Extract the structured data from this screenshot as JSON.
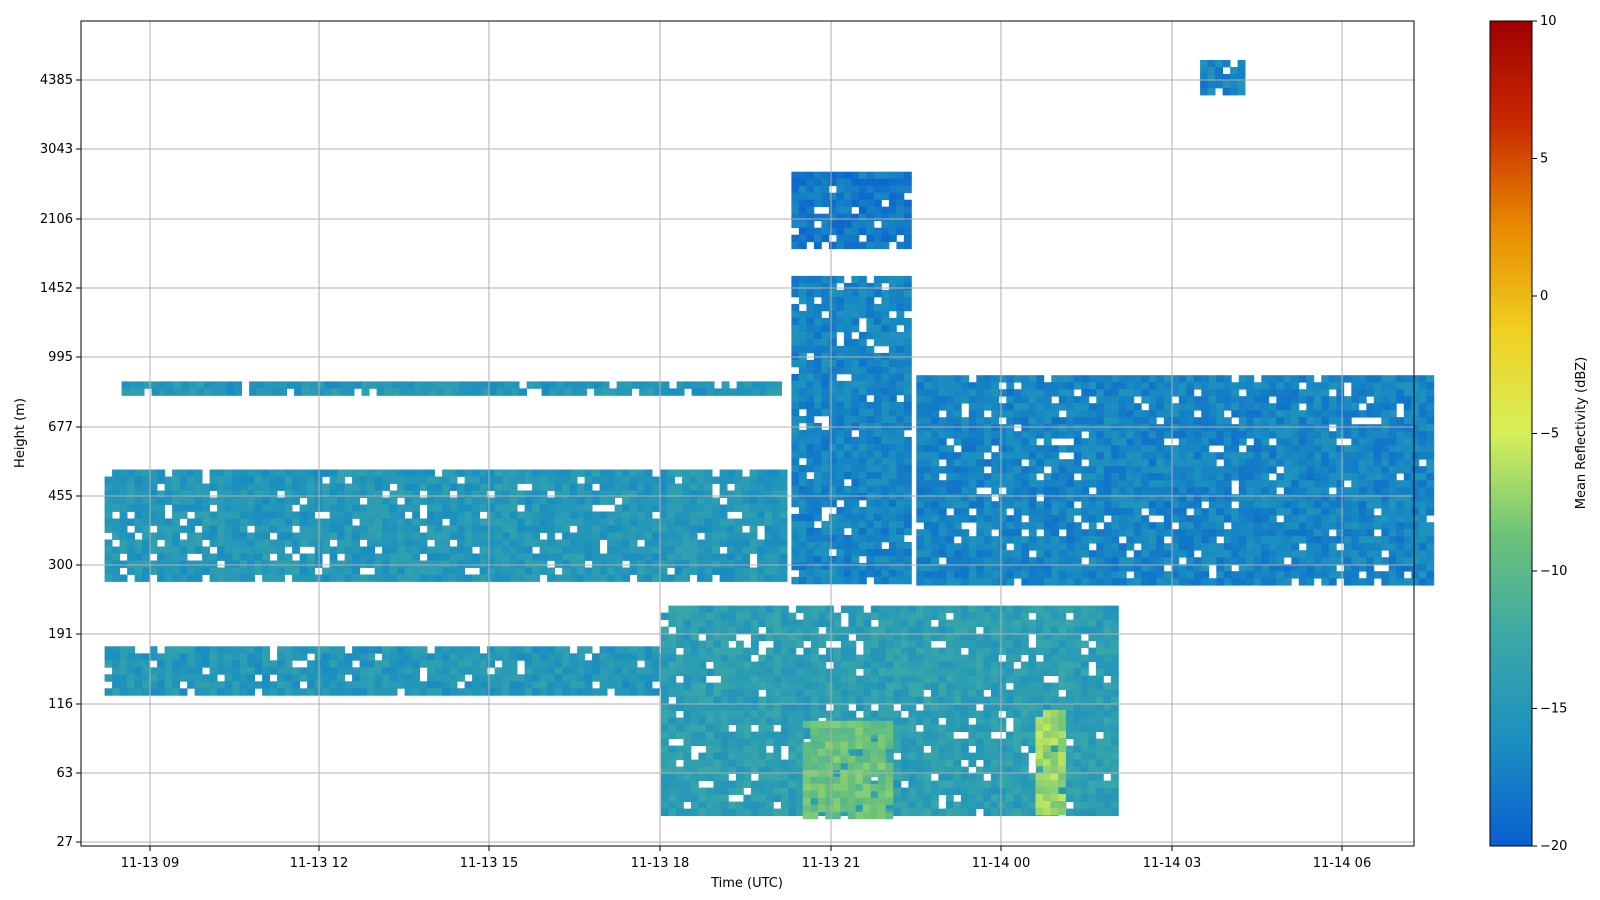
{
  "chart_data": {
    "type": "heatmap",
    "title": "",
    "xlabel": "Time (UTC)",
    "ylabel": "Height (m)",
    "x_ticks": [
      "11-13 09",
      "11-13 12",
      "11-13 15",
      "11-13 18",
      "11-13 21",
      "11-14 00",
      "11-14 03",
      "11-14 06"
    ],
    "y_ticks": [
      "27",
      "63",
      "116",
      "191",
      "300",
      "455",
      "677",
      "995",
      "1452",
      "2106",
      "3043",
      "4385"
    ],
    "colorbar": {
      "label": "Mean Reflectivity (dBZ)",
      "ticks": [
        "10",
        "5",
        "0",
        "−5",
        "−10",
        "−15",
        "−20"
      ],
      "range": [
        -20,
        10
      ],
      "colormap": [
        "#0a5fd0",
        "#1a8fc0",
        "#3aa8a8",
        "#6cc27a",
        "#d6f05a",
        "#f0d020",
        "#e88a00",
        "#c82a00",
        "#a00000"
      ]
    },
    "grid": true,
    "regions": [
      {
        "name": "low cloud layer 300-500 m",
        "t": [
          8.2,
          20.2
        ],
        "h_m": [
          270,
          530
        ],
        "dbz": -15
      },
      {
        "name": "low cloud layer 125-175 m",
        "t": [
          8.2,
          18.0
        ],
        "h_m": [
          125,
          175
        ],
        "dbz": -15
      },
      {
        "name": "thin layer ~850 m",
        "t": [
          8.5,
          20.0
        ],
        "h_m": [
          830,
          870
        ],
        "dbz": -15
      },
      {
        "name": "deep cloud column",
        "t": [
          20.3,
          22.3
        ],
        "h_m": [
          270,
          1550
        ],
        "dbz": -17
      },
      {
        "name": "cloud tops 2000-2700 m",
        "t": [
          20.3,
          22.3
        ],
        "h_m": [
          1800,
          2700
        ],
        "dbz": -18
      },
      {
        "name": "main cloud deck",
        "t": [
          22.5,
          31.5
        ],
        "h_m": [
          270,
          900
        ],
        "dbz": -17
      },
      {
        "name": "drizzle near surface",
        "t": [
          18.0,
          26.0
        ],
        "h_m": [
          38,
          230
        ],
        "dbz": -14
      },
      {
        "name": "enhanced echo near 21 UTC",
        "t": [
          20.5,
          22.0
        ],
        "h_m": [
          38,
          100
        ],
        "dbz": -9
      },
      {
        "name": "enhanced echo near 01 UTC",
        "t": [
          24.6,
          25.0
        ],
        "h_m": [
          38,
          110
        ],
        "dbz": -7
      },
      {
        "name": "upper patch ~4400 m",
        "t": [
          27.5,
          28.2
        ],
        "h_m": [
          4200,
          4800
        ],
        "dbz": -17
      }
    ]
  }
}
